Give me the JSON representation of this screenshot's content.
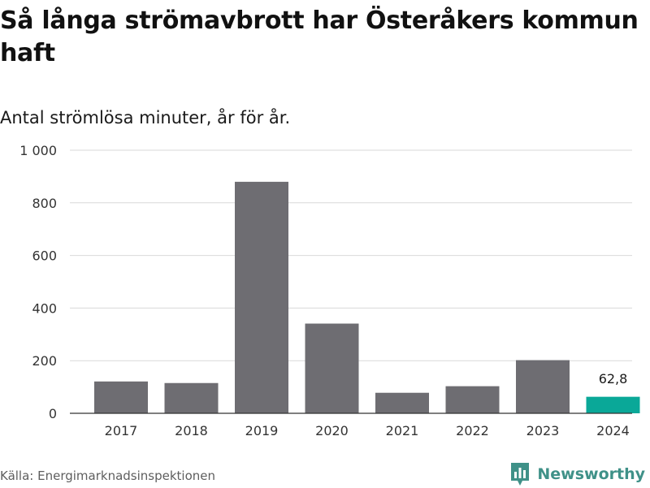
{
  "header": {
    "title": "Så långa strömavbrott har Österåkers kommun haft",
    "subtitle": "Antal strömlösa minuter, år för år."
  },
  "footer": {
    "source": "Källa: Energimarknadsinspektionen",
    "brand": "Newsworthy",
    "brand_icon": "bar-chart-logo-icon"
  },
  "colors": {
    "bar": "#6e6d72",
    "highlight": "#0aa898",
    "grid": "#d9d9d9",
    "axis": "#333333",
    "brand": "#3f9188"
  },
  "chart_data": {
    "type": "bar",
    "title": "Så långa strömavbrott har Österåkers kommun haft",
    "subtitle": "Antal strömlösa minuter, år för år.",
    "xlabel": "",
    "ylabel": "",
    "categories": [
      "2017",
      "2018",
      "2019",
      "2020",
      "2021",
      "2022",
      "2023",
      "2024"
    ],
    "values": [
      121,
      115,
      880,
      341,
      78,
      103,
      202,
      62.8
    ],
    "highlight_index": 7,
    "data_labels": [
      {
        "index": 7,
        "text": "62,8"
      }
    ],
    "ylim": [
      0,
      1000
    ],
    "yticks": [
      0,
      200,
      400,
      600,
      800,
      1000
    ],
    "ytick_labels": [
      "0",
      "200",
      "400",
      "600",
      "800",
      "1 000"
    ],
    "grid": true,
    "legend": "none"
  }
}
